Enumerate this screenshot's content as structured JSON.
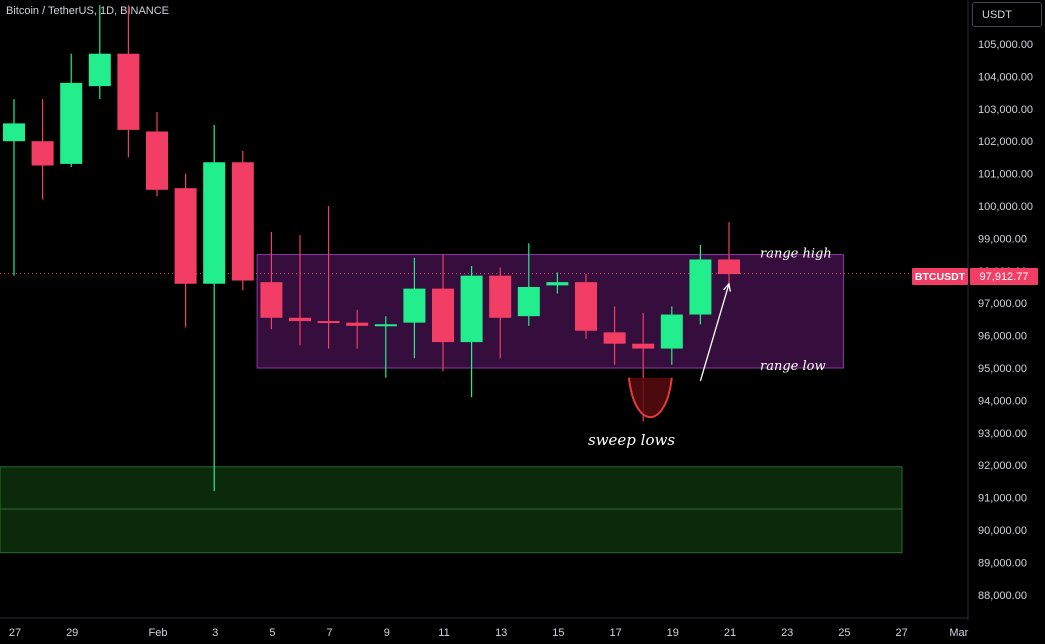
{
  "header": {
    "title": "Bitcoin / TetherUS, 1D, BINANCE"
  },
  "currency_button": {
    "label": "USDT"
  },
  "price_tag": {
    "symbol": "BTCUSDT",
    "price": "97,912.77"
  },
  "colors": {
    "up": "#22ee8d",
    "down": "#f23e64",
    "range_fill": "#3c0f44",
    "range_border": "#8e3aa5",
    "support_fill": "#0b2a0b",
    "support_border": "#2e6b2e",
    "arrow": "#ffffff",
    "sweep_curve": "#e23a3a"
  },
  "chart_data": {
    "type": "candlestick",
    "ylim": [
      87400,
      106100
    ],
    "y_ticks": [
      {
        "v": 105000,
        "label": "105,000.00"
      },
      {
        "v": 104000,
        "label": "104,000.00"
      },
      {
        "v": 103000,
        "label": "103,000.00"
      },
      {
        "v": 102000,
        "label": "102,000.00"
      },
      {
        "v": 101000,
        "label": "101,000.00"
      },
      {
        "v": 100000,
        "label": "100,000.00"
      },
      {
        "v": 99000,
        "label": "99,000.00"
      },
      {
        "v": 98000,
        "label": "98,000.00"
      },
      {
        "v": 97000,
        "label": "97,000.00"
      },
      {
        "v": 96000,
        "label": "96,000.00"
      },
      {
        "v": 95000,
        "label": "95,000.00"
      },
      {
        "v": 94000,
        "label": "94,000.00"
      },
      {
        "v": 93000,
        "label": "93,000.00"
      },
      {
        "v": 92000,
        "label": "92,000.00"
      },
      {
        "v": 91000,
        "label": "91,000.00"
      },
      {
        "v": 90000,
        "label": "90,000.00"
      },
      {
        "v": 89000,
        "label": "89,000.00"
      },
      {
        "v": 88000,
        "label": "88,000.00"
      }
    ],
    "x_ticks": [
      {
        "i": 0,
        "label": "27"
      },
      {
        "i": 2,
        "label": "29"
      },
      {
        "i": 5,
        "label": "Feb"
      },
      {
        "i": 7,
        "label": "3"
      },
      {
        "i": 9,
        "label": "5"
      },
      {
        "i": 11,
        "label": "7"
      },
      {
        "i": 13,
        "label": "9"
      },
      {
        "i": 15,
        "label": "11"
      },
      {
        "i": 17,
        "label": "13"
      },
      {
        "i": 19,
        "label": "15"
      },
      {
        "i": 21,
        "label": "17"
      },
      {
        "i": 23,
        "label": "19"
      },
      {
        "i": 25,
        "label": "21"
      },
      {
        "i": 27,
        "label": "23"
      },
      {
        "i": 29,
        "label": "25"
      },
      {
        "i": 31,
        "label": "27"
      },
      {
        "i": 33,
        "label": "Mar"
      }
    ],
    "candles": [
      {
        "d": "Jan 27",
        "o": 102000,
        "h": 103300,
        "l": 97850,
        "c": 102550
      },
      {
        "d": "Jan 28",
        "o": 102000,
        "h": 103300,
        "l": 100200,
        "c": 101250
      },
      {
        "d": "Jan 29",
        "o": 101300,
        "h": 104700,
        "l": 101200,
        "c": 103800
      },
      {
        "d": "Jan 30",
        "o": 103700,
        "h": 106200,
        "l": 103300,
        "c": 104700
      },
      {
        "d": "Jan 31",
        "o": 104700,
        "h": 106200,
        "l": 101500,
        "c": 102350
      },
      {
        "d": "Feb 1",
        "o": 102300,
        "h": 102900,
        "l": 100300,
        "c": 100500
      },
      {
        "d": "Feb 2",
        "o": 100550,
        "h": 101000,
        "l": 96250,
        "c": 97600
      },
      {
        "d": "Feb 3",
        "o": 97600,
        "h": 102500,
        "l": 91200,
        "c": 101350
      },
      {
        "d": "Feb 4",
        "o": 101350,
        "h": 101700,
        "l": 97400,
        "c": 97700
      },
      {
        "d": "Feb 5",
        "o": 97650,
        "h": 99200,
        "l": 96200,
        "c": 96550
      },
      {
        "d": "Feb 6",
        "o": 96550,
        "h": 99100,
        "l": 95700,
        "c": 96450
      },
      {
        "d": "Feb 7",
        "o": 96450,
        "h": 100000,
        "l": 95600,
        "c": 96400
      },
      {
        "d": "Feb 8",
        "o": 96400,
        "h": 96800,
        "l": 95600,
        "c": 96300
      },
      {
        "d": "Feb 9",
        "o": 96300,
        "h": 96600,
        "l": 94700,
        "c": 96350
      },
      {
        "d": "Feb 10",
        "o": 96400,
        "h": 98400,
        "l": 95300,
        "c": 97450
      },
      {
        "d": "Feb 11",
        "o": 97450,
        "h": 98500,
        "l": 94900,
        "c": 95800
      },
      {
        "d": "Feb 12",
        "o": 95800,
        "h": 98150,
        "l": 94100,
        "c": 97850
      },
      {
        "d": "Feb 13",
        "o": 97850,
        "h": 98100,
        "l": 95300,
        "c": 96550
      },
      {
        "d": "Feb 14",
        "o": 96600,
        "h": 98850,
        "l": 96300,
        "c": 97500
      },
      {
        "d": "Feb 15",
        "o": 97550,
        "h": 97950,
        "l": 97300,
        "c": 97650
      },
      {
        "d": "Feb 16",
        "o": 97650,
        "h": 97900,
        "l": 95900,
        "c": 96150
      },
      {
        "d": "Feb 17",
        "o": 96100,
        "h": 96900,
        "l": 95100,
        "c": 95750
      },
      {
        "d": "Feb 18",
        "o": 95750,
        "h": 96700,
        "l": 93350,
        "c": 95600
      },
      {
        "d": "Feb 19",
        "o": 95600,
        "h": 96900,
        "l": 95100,
        "c": 96650
      },
      {
        "d": "Feb 20",
        "o": 96650,
        "h": 98800,
        "l": 96350,
        "c": 98350
      },
      {
        "d": "Feb 21",
        "o": 98350,
        "h": 99500,
        "l": 97600,
        "c": 97900
      }
    ],
    "range_box": {
      "top": 98500,
      "bottom": 95000,
      "start": 8.5,
      "end": 29
    },
    "support_zone": {
      "top": 91950,
      "bottom": 89300,
      "mid": 90650
    },
    "sweep": {
      "from": 21.5,
      "to": 23,
      "top": 94700,
      "bottom": 93200
    },
    "arrow": {
      "from_i": 24,
      "from_v": 94600,
      "to_i": 25,
      "to_v": 97600
    },
    "annotations": {
      "range_high": "range high",
      "range_low": "range low",
      "sweep": "sweep lows"
    },
    "current_price": 97912.77
  }
}
